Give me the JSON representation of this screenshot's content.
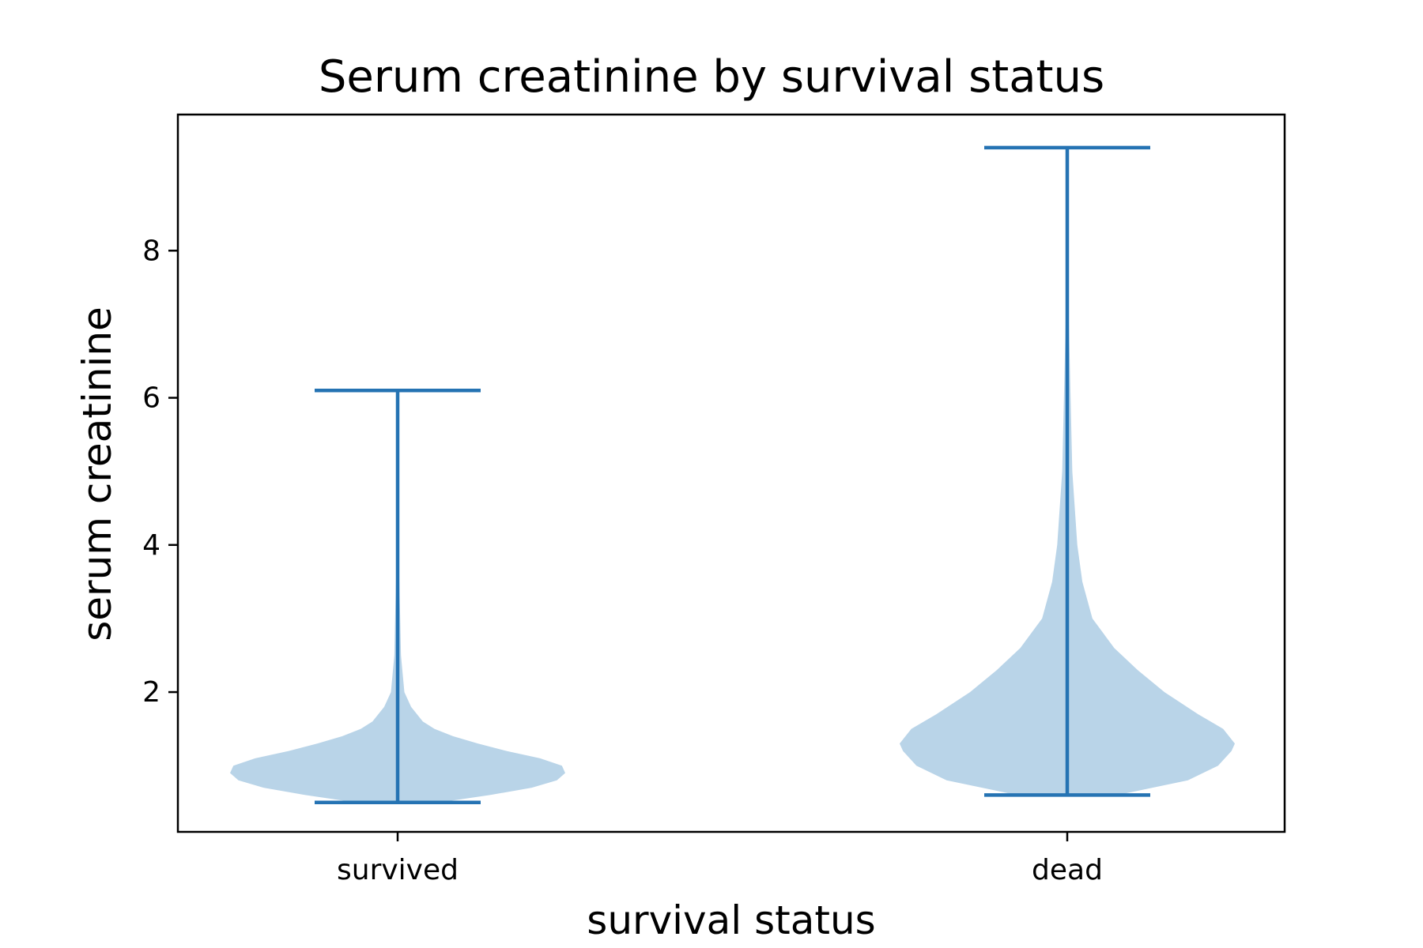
{
  "chart_data": {
    "type": "violin",
    "title": "Serum creatinine by survival status",
    "xlabel": "survival status",
    "ylabel": "serum creatinine",
    "categories": [
      "survived",
      "dead"
    ],
    "yticks": [
      2,
      4,
      6,
      8
    ],
    "ylim": [
      0.1,
      9.85
    ],
    "grid": false,
    "legend": "none",
    "colors": {
      "fill": "#b9d4e8",
      "line": "#2573b3"
    },
    "series": [
      {
        "category": "survived",
        "min": 0.5,
        "max": 6.1,
        "density": [
          [
            0.5,
            0.25
          ],
          [
            0.6,
            0.55
          ],
          [
            0.7,
            0.8
          ],
          [
            0.8,
            0.95
          ],
          [
            0.9,
            1.0
          ],
          [
            1.0,
            0.98
          ],
          [
            1.1,
            0.85
          ],
          [
            1.2,
            0.65
          ],
          [
            1.3,
            0.48
          ],
          [
            1.4,
            0.33
          ],
          [
            1.5,
            0.22
          ],
          [
            1.6,
            0.15
          ],
          [
            1.8,
            0.08
          ],
          [
            2.0,
            0.04
          ],
          [
            2.5,
            0.02
          ],
          [
            3.0,
            0.015
          ],
          [
            3.5,
            0.01
          ],
          [
            4.0,
            0.005
          ],
          [
            5.0,
            0.003
          ],
          [
            6.1,
            0.001
          ]
        ]
      },
      {
        "category": "dead",
        "min": 0.6,
        "max": 9.4,
        "density": [
          [
            0.6,
            0.3
          ],
          [
            0.8,
            0.72
          ],
          [
            1.0,
            0.9
          ],
          [
            1.2,
            0.98
          ],
          [
            1.3,
            1.0
          ],
          [
            1.5,
            0.93
          ],
          [
            1.7,
            0.78
          ],
          [
            2.0,
            0.58
          ],
          [
            2.3,
            0.42
          ],
          [
            2.6,
            0.28
          ],
          [
            3.0,
            0.15
          ],
          [
            3.5,
            0.09
          ],
          [
            4.0,
            0.06
          ],
          [
            5.0,
            0.03
          ],
          [
            6.0,
            0.02
          ],
          [
            7.0,
            0.01
          ],
          [
            8.0,
            0.008
          ],
          [
            9.0,
            0.004
          ],
          [
            9.4,
            0.002
          ]
        ]
      }
    ]
  }
}
